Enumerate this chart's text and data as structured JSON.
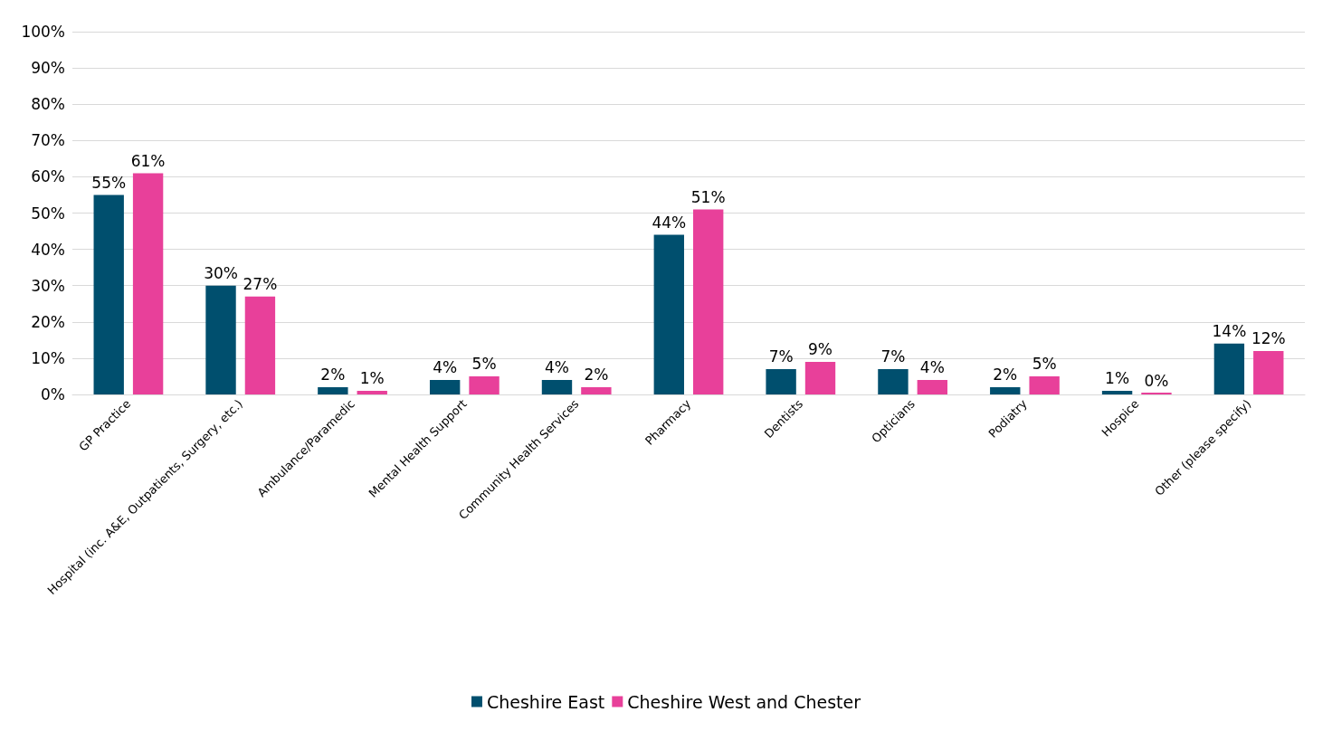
{
  "chart_data": {
    "type": "bar",
    "categories": [
      "GP Practice",
      "Hospital (inc. A&E, Outpatients, Surgery, etc.)",
      "Ambulance/Paramedic",
      "Mental Health Support",
      "Community Health Services",
      "Pharmacy",
      "Dentists",
      "Opticians",
      "Podiatry",
      "Hospice",
      "Other (please specify)"
    ],
    "series": [
      {
        "name": "Cheshire East",
        "color": "#004f6e",
        "values": [
          55,
          30,
          2,
          4,
          4,
          44,
          7,
          7,
          2,
          1,
          14
        ],
        "value_labels": [
          "55%",
          "30%",
          "2%",
          "4%",
          "4%",
          "44%",
          "7%",
          "7%",
          "2%",
          "1%",
          "14%"
        ]
      },
      {
        "name": "Cheshire West and Chester",
        "color": "#e8409a",
        "values": [
          61,
          27,
          1,
          5,
          2,
          51,
          9,
          4,
          5,
          0,
          12
        ],
        "value_labels": [
          "61%",
          "27%",
          "1%",
          "5%",
          "2%",
          "51%",
          "9%",
          "4%",
          "5%",
          "0%",
          "12%"
        ]
      }
    ],
    "ylim": [
      0,
      100
    ],
    "yticks": [
      {
        "value": 0,
        "label": "0%"
      },
      {
        "value": 10,
        "label": "10%"
      },
      {
        "value": 20,
        "label": "20%"
      },
      {
        "value": 30,
        "label": "30%"
      },
      {
        "value": 40,
        "label": "40%"
      },
      {
        "value": 50,
        "label": "50%"
      },
      {
        "value": 60,
        "label": "60%"
      },
      {
        "value": 70,
        "label": "70%"
      },
      {
        "value": 80,
        "label": "80%"
      },
      {
        "value": 90,
        "label": "90%"
      },
      {
        "value": 100,
        "label": "100%"
      }
    ],
    "grid": "y",
    "legend": "bottom"
  }
}
